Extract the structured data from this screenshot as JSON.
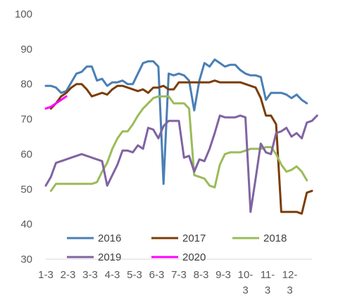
{
  "chart_data": {
    "type": "line",
    "title": "",
    "xlabel": "",
    "ylabel": "",
    "ylim": [
      30,
      100
    ],
    "y_ticks": [
      "30",
      "40",
      "50",
      "60",
      "70",
      "80",
      "90",
      "100"
    ],
    "x_tick_labels": [
      {
        "line1": "1-3",
        "line2": ""
      },
      {
        "line1": "2-3",
        "line2": ""
      },
      {
        "line1": "3-3",
        "line2": ""
      },
      {
        "line1": "4-3",
        "line2": ""
      },
      {
        "line1": "5-3",
        "line2": ""
      },
      {
        "line1": "6-3",
        "line2": ""
      },
      {
        "line1": "7-3",
        "line2": ""
      },
      {
        "line1": "8-3",
        "line2": ""
      },
      {
        "line1": "9-3",
        "line2": ""
      },
      {
        "line1": "10-",
        "line2": "3"
      },
      {
        "line1": "11-",
        "line2": "3"
      },
      {
        "line1": "12-",
        "line2": "3"
      }
    ],
    "x_range": [
      0,
      52
    ],
    "grid": false,
    "legend_position": "bottom",
    "series": [
      {
        "name": "2016",
        "color": "#4a7fb5",
        "values": [
          79.5,
          79.5,
          79,
          77.5,
          78,
          80.5,
          83,
          83.5,
          85,
          85,
          81,
          81.5,
          79.5,
          80.5,
          80.5,
          81,
          80,
          80,
          83,
          86,
          86.5,
          86.5,
          85,
          51.5,
          83,
          82.5,
          83,
          82.5,
          81,
          72.5,
          81,
          86,
          85,
          87,
          86,
          85,
          85.5,
          85.5,
          84,
          83,
          82.5,
          82.5,
          82,
          75.5,
          77.5,
          77.5,
          77.5,
          77,
          76,
          77,
          75.5,
          74.5
        ]
      },
      {
        "name": "2017",
        "color": "#7b3d06",
        "values": [
          null,
          73,
          74.5,
          76.5,
          77.5,
          79,
          80,
          80,
          78.5,
          76.5,
          77,
          77.5,
          77,
          78.5,
          79.5,
          79.5,
          79,
          78.5,
          78,
          78.5,
          77.5,
          79,
          79,
          79.5,
          78.5,
          78.5,
          80.5,
          80.5,
          80.5,
          80.5,
          80.5,
          80.5,
          80.5,
          81,
          80.5,
          80.5,
          80.5,
          80.5,
          80.5,
          80,
          79.5,
          79,
          76,
          71,
          71,
          68.5,
          43.5,
          43.5,
          43.5,
          43.5,
          43,
          49,
          49.5
        ]
      },
      {
        "name": "2018",
        "color": "#9bbb59",
        "values": [
          null,
          49.5,
          51.5,
          51.5,
          51.5,
          51.5,
          51.5,
          51.5,
          51.5,
          51.5,
          52,
          55,
          57.5,
          61.5,
          64.5,
          66.5,
          66.5,
          68.5,
          71,
          73,
          74.5,
          76,
          76.5,
          76.5,
          76.5,
          74.5,
          74.5,
          74.5,
          73,
          54,
          53.5,
          53,
          51,
          50.5,
          57,
          60,
          60.5,
          60.5,
          60.5,
          61,
          61.5,
          61.5,
          61.5,
          62,
          62,
          60,
          57,
          55,
          55.5,
          56.5,
          55,
          52.5
        ]
      },
      {
        "name": "2019",
        "color": "#8064a2",
        "values": [
          51,
          53.5,
          57.5,
          58,
          58.5,
          59,
          59.5,
          60,
          59.5,
          59,
          58.5,
          58,
          51,
          54,
          57,
          61,
          61,
          60.5,
          62.5,
          61.5,
          67.5,
          67,
          64.5,
          68,
          69.5,
          69.5,
          69.5,
          59,
          59.5,
          55,
          58.5,
          58,
          61.5,
          66,
          71,
          70.5,
          70.5,
          70.5,
          71,
          70.5,
          43.5,
          53,
          63,
          60.5,
          60,
          66,
          66.5,
          67.5,
          65,
          66,
          64.5,
          69,
          69.5,
          71
        ]
      },
      {
        "name": "2020",
        "color": "#ff00ff",
        "values": [
          73,
          73.5,
          74.5,
          75.5,
          76.5
        ]
      }
    ]
  }
}
